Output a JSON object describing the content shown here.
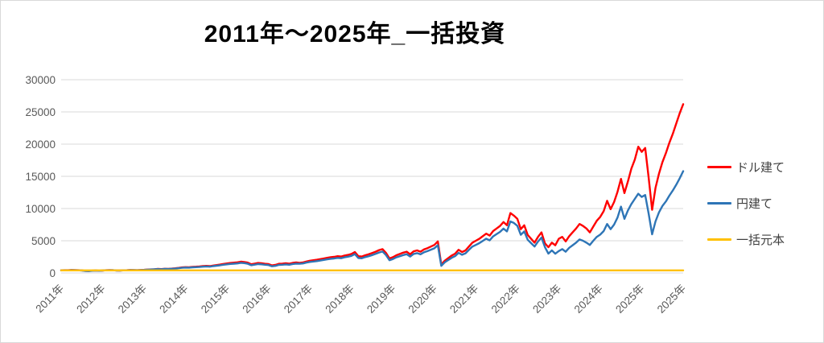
{
  "title": "2011年〜2025年_一括投資",
  "colors": {
    "dollar_line": "#FF0000",
    "yen_line": "#2E75B6",
    "principal_line": "#FFC000",
    "grid": "#D9D9D9",
    "tick_label": "#595959",
    "legend_text": "#404040",
    "title_text": "#000000"
  },
  "chart_data": {
    "type": "line",
    "title": "2011年〜2025年_一括投資",
    "xlabel": "",
    "ylabel": "",
    "ylim": [
      0,
      30000
    ],
    "y_ticks": [
      0,
      5000,
      10000,
      15000,
      20000,
      25000,
      30000
    ],
    "grid": "horizontal",
    "legend_position": "right",
    "x_tick_labels": [
      "2011年",
      "2012年",
      "2013年",
      "2014年",
      "2015年",
      "2016年",
      "2017年",
      "2018年",
      "2019年",
      "2020年",
      "2021年",
      "2022年",
      "2023年",
      "2024年",
      "2025年",
      "2025年"
    ],
    "x_ticks_every_n_points": 12,
    "series": [
      {
        "name": "ドル建て",
        "color": "#FF0000",
        "values": [
          410,
          430,
          420,
          460,
          450,
          430,
          400,
          330,
          310,
          360,
          390,
          350,
          380,
          420,
          440,
          430,
          390,
          380,
          410,
          430,
          460,
          450,
          430,
          460,
          490,
          520,
          550,
          580,
          620,
          600,
          650,
          640,
          680,
          720,
          790,
          860,
          900,
          880,
          950,
          970,
          1010,
          1060,
          1100,
          1060,
          1150,
          1230,
          1300,
          1400,
          1480,
          1550,
          1600,
          1650,
          1750,
          1700,
          1600,
          1350,
          1450,
          1550,
          1500,
          1430,
          1380,
          1180,
          1250,
          1420,
          1450,
          1500,
          1440,
          1560,
          1620,
          1580,
          1640,
          1780,
          1900,
          1980,
          2050,
          2150,
          2250,
          2350,
          2450,
          2500,
          2600,
          2550,
          2700,
          2800,
          2950,
          3250,
          2600,
          2550,
          2750,
          2900,
          3100,
          3300,
          3550,
          3700,
          3100,
          2250,
          2450,
          2750,
          2950,
          3150,
          3300,
          2900,
          3350,
          3500,
          3300,
          3650,
          3850,
          4100,
          4350,
          4900,
          1300,
          1900,
          2300,
          2700,
          3000,
          3600,
          3250,
          3500,
          4100,
          4700,
          5000,
          5300,
          5700,
          6100,
          5800,
          6500,
          6900,
          7300,
          7900,
          7400,
          9300,
          8900,
          8400,
          6800,
          7400,
          5900,
          5300,
          4700,
          5600,
          6300,
          4600,
          4000,
          4700,
          4300,
          5300,
          5600,
          4900,
          5700,
          6300,
          6900,
          7600,
          7300,
          6900,
          6300,
          7200,
          8100,
          8700,
          9600,
          11200,
          9900,
          11000,
          12600,
          14600,
          12400,
          14200,
          16200,
          17600,
          19600,
          18800,
          19400,
          14800,
          9800,
          13200,
          15400,
          17200,
          18600,
          20200,
          21600,
          23200,
          24800,
          26200
        ]
      },
      {
        "name": "円建て",
        "color": "#2E75B6",
        "values": [
          400,
          415,
          405,
          440,
          430,
          410,
          380,
          310,
          290,
          340,
          370,
          340,
          370,
          410,
          430,
          420,
          375,
          365,
          395,
          415,
          445,
          440,
          425,
          455,
          480,
          510,
          535,
          560,
          595,
          575,
          620,
          610,
          645,
          680,
          740,
          800,
          840,
          820,
          880,
          900,
          930,
          975,
          1010,
          980,
          1060,
          1130,
          1190,
          1270,
          1340,
          1400,
          1440,
          1480,
          1570,
          1520,
          1430,
          1200,
          1290,
          1380,
          1340,
          1280,
          1230,
          1040,
          1100,
          1250,
          1280,
          1330,
          1280,
          1390,
          1450,
          1420,
          1480,
          1610,
          1710,
          1780,
          1840,
          1930,
          2020,
          2110,
          2200,
          2250,
          2340,
          2290,
          2430,
          2520,
          2650,
          2920,
          2330,
          2280,
          2460,
          2600,
          2780,
          2960,
          3180,
          3320,
          2780,
          1980,
          2160,
          2420,
          2600,
          2780,
          2910,
          2550,
          2950,
          3080,
          2900,
          3210,
          3390,
          3610,
          3830,
          4310,
          1100,
          1650,
          2000,
          2350,
          2610,
          3130,
          2830,
          3050,
          3570,
          4090,
          4350,
          4620,
          4970,
          5320,
          5060,
          5670,
          6020,
          6370,
          6890,
          6450,
          8000,
          7760,
          7330,
          5930,
          6450,
          5150,
          4620,
          4100,
          4880,
          5490,
          4010,
          3000,
          3500,
          2990,
          3400,
          3700,
          3300,
          3900,
          4300,
          4700,
          5200,
          5000,
          4700,
          4350,
          5000,
          5600,
          5950,
          6500,
          7600,
          6800,
          7500,
          8600,
          10300,
          8400,
          9700,
          10700,
          11500,
          12300,
          11800,
          12100,
          9200,
          6000,
          8000,
          9400,
          10400,
          11100,
          12000,
          12800,
          13700,
          14700,
          15800
        ]
      },
      {
        "name": "一括元本",
        "color": "#FFC000",
        "constant": 400
      }
    ]
  }
}
